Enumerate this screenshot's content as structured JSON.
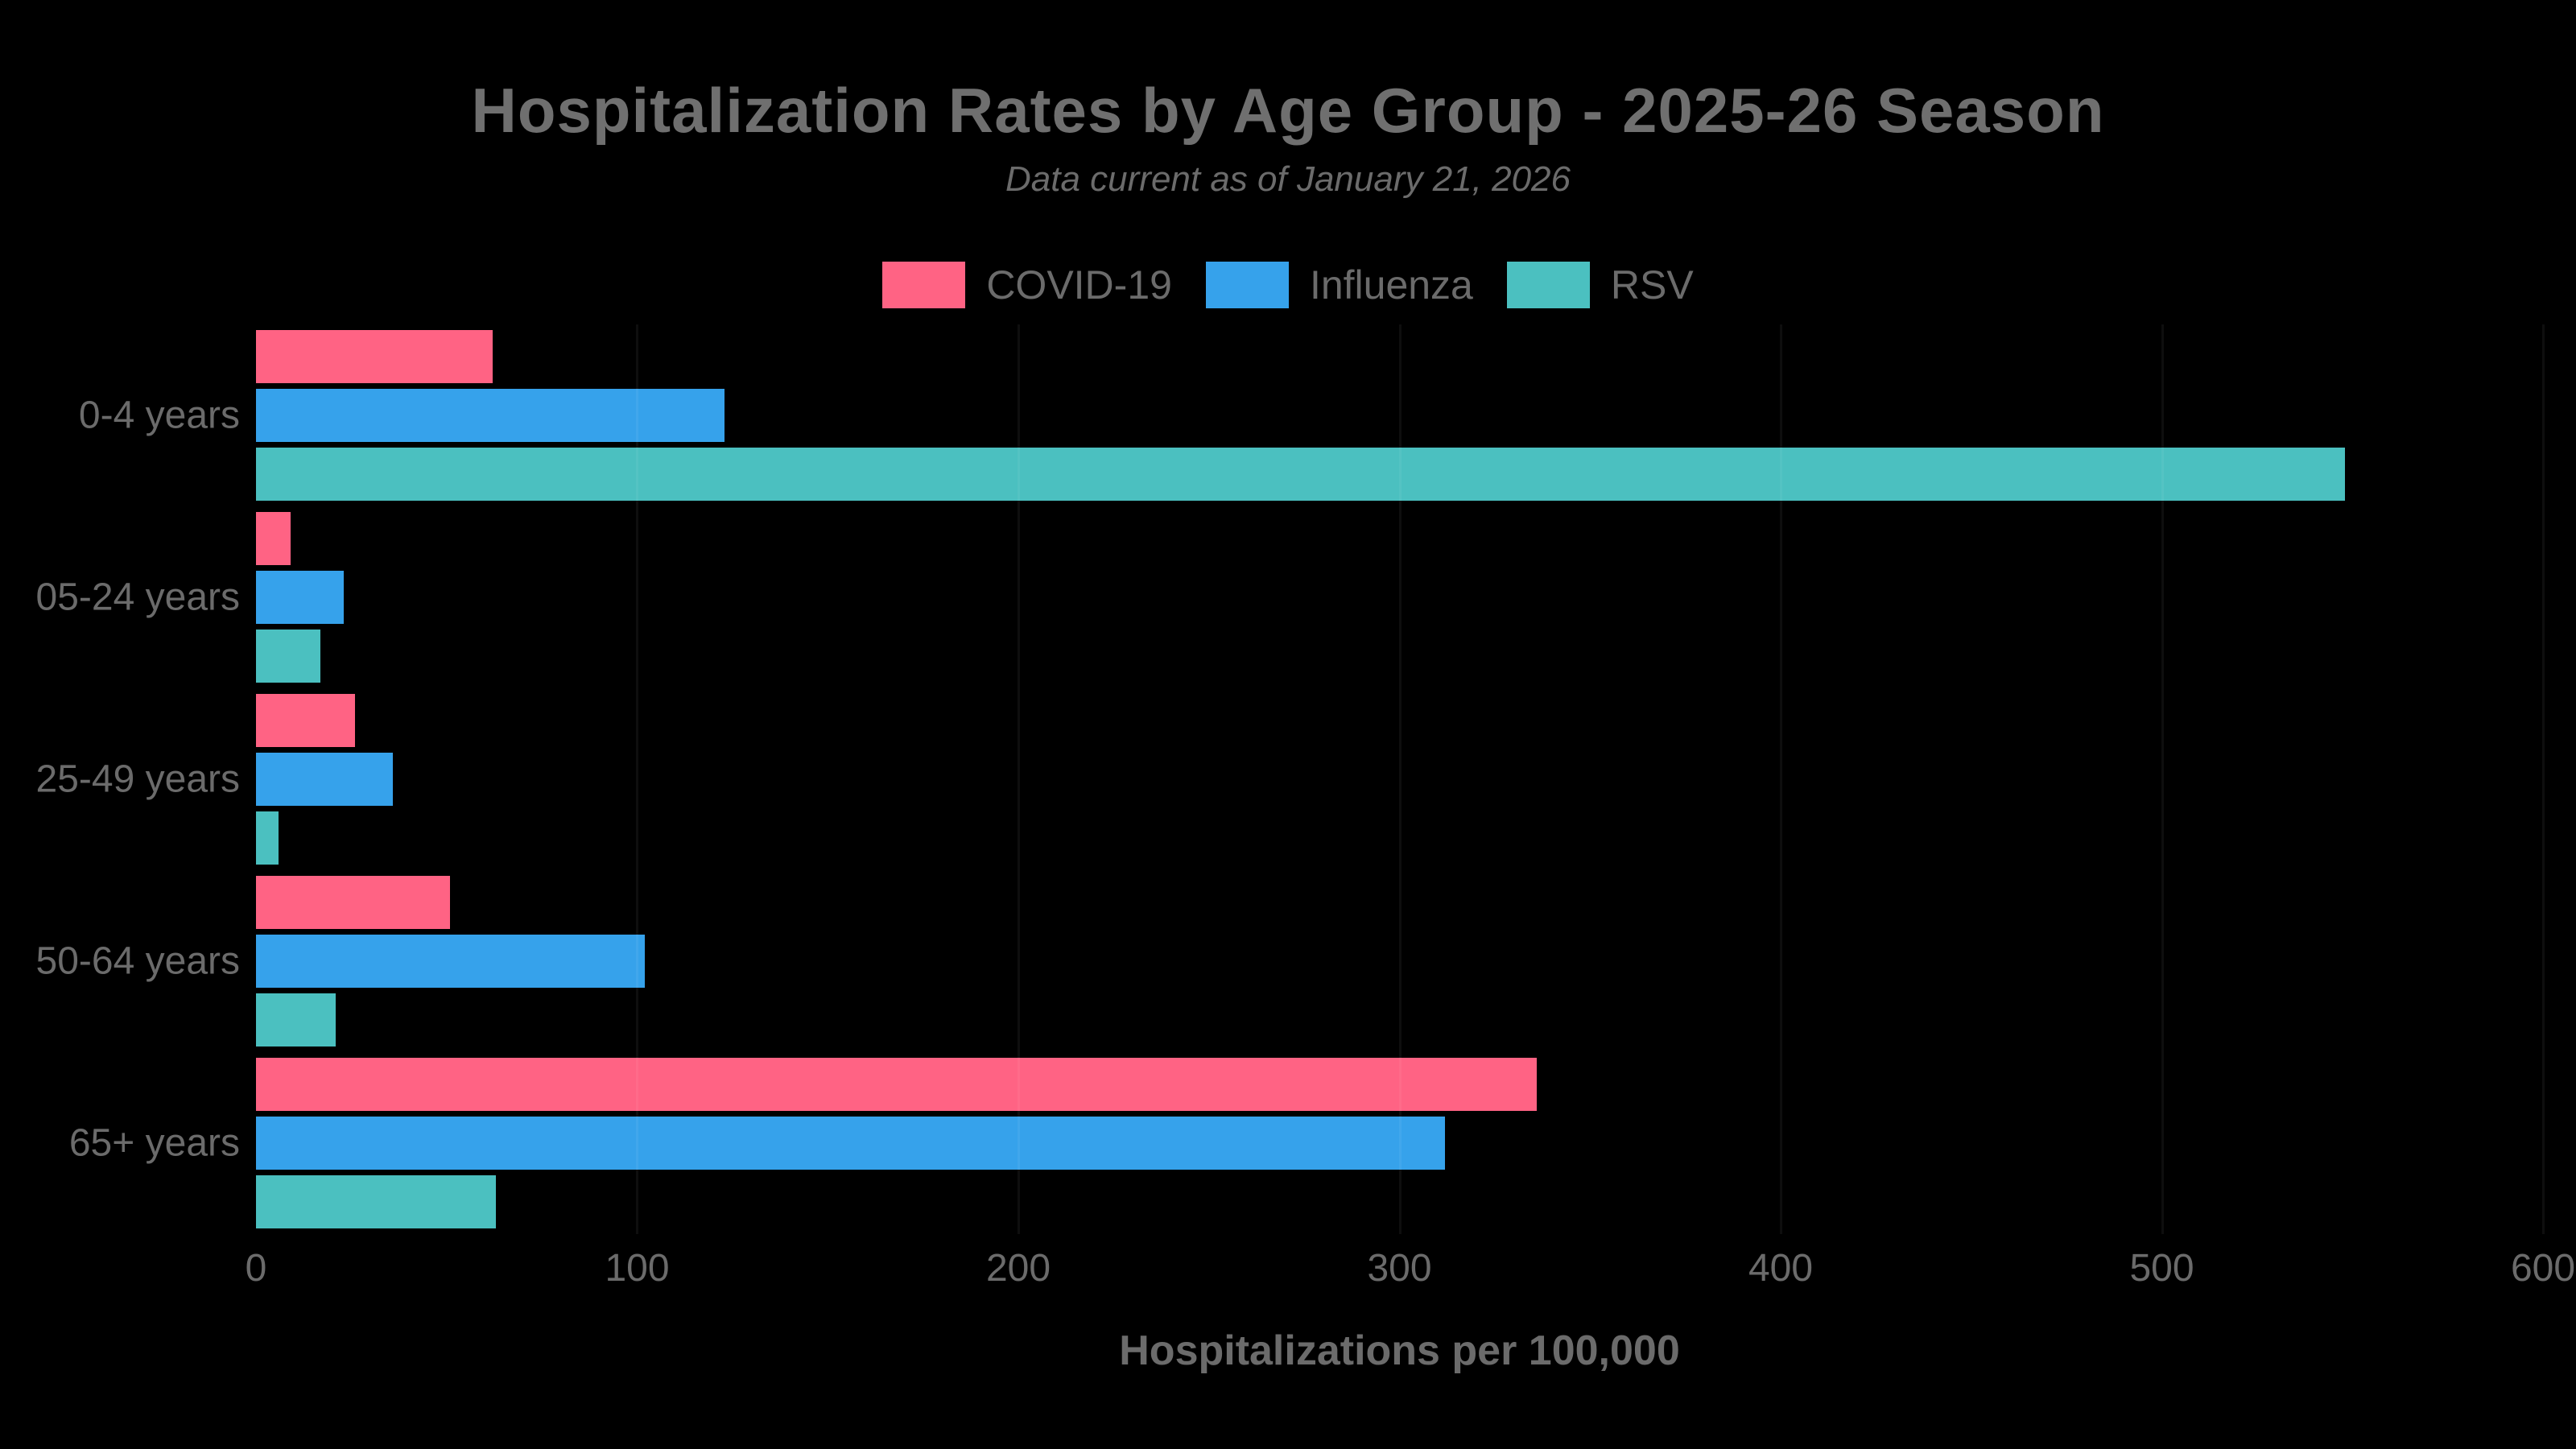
{
  "page": {
    "background": "#000000",
    "text_color": "#6b6b6b"
  },
  "chart_data": {
    "type": "bar",
    "orientation": "horizontal",
    "title": "Hospitalization Rates by Age Group - 2025-26 Season",
    "subtitle": "Data current as of January 21, 2026",
    "xlabel": "Hospitalizations per 100,000",
    "categories": [
      "0-4 years",
      "05-24 years",
      "25-49 years",
      "50-64 years",
      "65+ years"
    ],
    "series": [
      {
        "name": "COVID-19",
        "color": "#FF6384",
        "values": [
          62,
          9,
          26,
          51,
          336
        ]
      },
      {
        "name": "Influenza",
        "color": "#36A2EB",
        "values": [
          123,
          23,
          36,
          102,
          312
        ]
      },
      {
        "name": "RSV",
        "color": "#4BC0C0",
        "values": [
          548,
          17,
          6,
          21,
          63
        ]
      }
    ],
    "xlim": [
      0,
      600
    ],
    "xticks": [
      0,
      100,
      200,
      300,
      400,
      500,
      600
    ],
    "legend_position": "top",
    "grid": "faint-vertical-lines"
  }
}
